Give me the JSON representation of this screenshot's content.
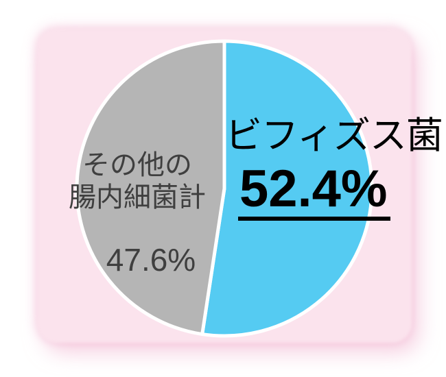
{
  "page": {
    "background_color": "#ffffff",
    "panel_color": "#FBE3ED"
  },
  "chart_data": {
    "type": "pie",
    "categories": [
      "ビフィズス菌",
      "その他の腸内細菌計"
    ],
    "values": [
      52.4,
      47.6
    ],
    "unit": "%",
    "colors": [
      "#55CBF2",
      "#B5B5B5"
    ],
    "start_angle_deg": 0,
    "direction": "clockwise",
    "slice_border_color": "#ffffff",
    "labels_on_chart": true,
    "title": "",
    "legend": "none"
  },
  "labels": {
    "bifidus": {
      "name": "ビフィズス菌",
      "value": "52.4%"
    },
    "other": {
      "line1": "その他の",
      "line2": "腸内細菌計",
      "value": "47.6%"
    }
  }
}
